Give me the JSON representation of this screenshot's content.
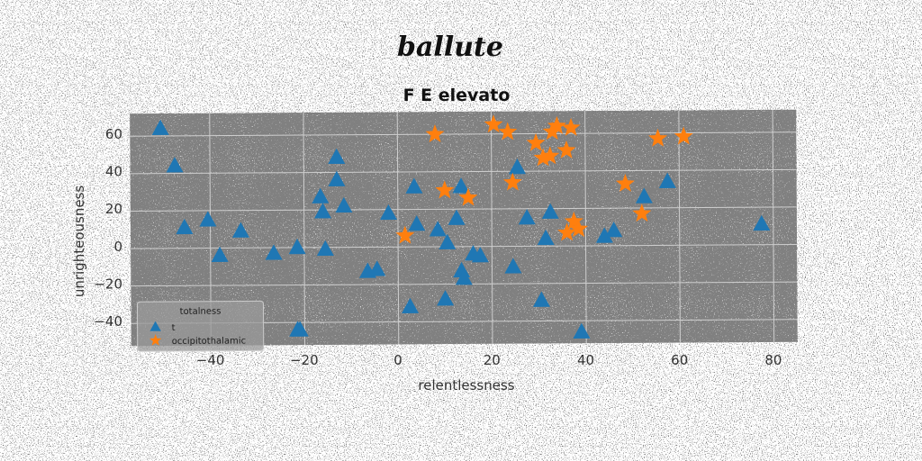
{
  "chart_data": {
    "type": "scatter",
    "suptitle": "ballute",
    "title": "F E elevato",
    "xlabel": "relentlessness",
    "ylabel": "unrighteousness",
    "xlim": [
      -57,
      85
    ],
    "ylim": [
      -52,
      72
    ],
    "xticks": [
      -40,
      -20,
      0,
      20,
      40,
      60,
      80
    ],
    "yticks": [
      -40,
      -20,
      0,
      20,
      40,
      60
    ],
    "grid": true,
    "legend_title": "totalness",
    "legend_placement": "lower-left",
    "series": [
      {
        "name": "t",
        "marker": "triangle",
        "color": "#1f77b4",
        "points": [
          [
            -50.5,
            64
          ],
          [
            -47.5,
            44
          ],
          [
            -45.5,
            11
          ],
          [
            -40.5,
            15
          ],
          [
            -38,
            -4
          ],
          [
            -33.5,
            9
          ],
          [
            -26.5,
            -3
          ],
          [
            -21.5,
            0
          ],
          [
            -21.5,
            -44
          ],
          [
            -21,
            -44
          ],
          [
            -16.5,
            27
          ],
          [
            -16,
            19
          ],
          [
            -15.5,
            -1
          ],
          [
            -13,
            48
          ],
          [
            -13,
            36
          ],
          [
            -11.5,
            22
          ],
          [
            -6.5,
            -13
          ],
          [
            -4.5,
            -12
          ],
          [
            -2,
            18
          ],
          [
            2.5,
            -32
          ],
          [
            3.5,
            32
          ],
          [
            4,
            12
          ],
          [
            8.5,
            9
          ],
          [
            10.5,
            2
          ],
          [
            10,
            -28
          ],
          [
            12.5,
            15
          ],
          [
            13.5,
            32
          ],
          [
            13.5,
            -13
          ],
          [
            14,
            -17
          ],
          [
            16,
            -4
          ],
          [
            17.5,
            -5
          ],
          [
            24.5,
            -11
          ],
          [
            25.5,
            42
          ],
          [
            27.5,
            15
          ],
          [
            30.5,
            -29
          ],
          [
            31.5,
            4
          ],
          [
            32.5,
            18
          ],
          [
            39,
            -46
          ],
          [
            44,
            5
          ],
          [
            46,
            8
          ],
          [
            52.5,
            26
          ],
          [
            57.5,
            34
          ],
          [
            77.5,
            11
          ]
        ]
      },
      {
        "name": "occipitothalamic",
        "marker": "star",
        "color": "#ff7f0e",
        "points": [
          [
            8,
            60
          ],
          [
            20.5,
            65
          ],
          [
            23.5,
            61
          ],
          [
            24.5,
            34
          ],
          [
            10,
            30
          ],
          [
            15,
            26
          ],
          [
            1.5,
            6
          ],
          [
            29.5,
            55
          ],
          [
            31,
            47
          ],
          [
            32.5,
            48
          ],
          [
            33,
            61
          ],
          [
            34,
            64
          ],
          [
            36,
            51
          ],
          [
            37,
            63
          ],
          [
            36,
            7
          ],
          [
            37.5,
            13
          ],
          [
            38.5,
            9
          ],
          [
            48.5,
            33
          ],
          [
            52,
            17
          ],
          [
            55.5,
            57
          ],
          [
            61,
            58
          ]
        ]
      }
    ]
  }
}
